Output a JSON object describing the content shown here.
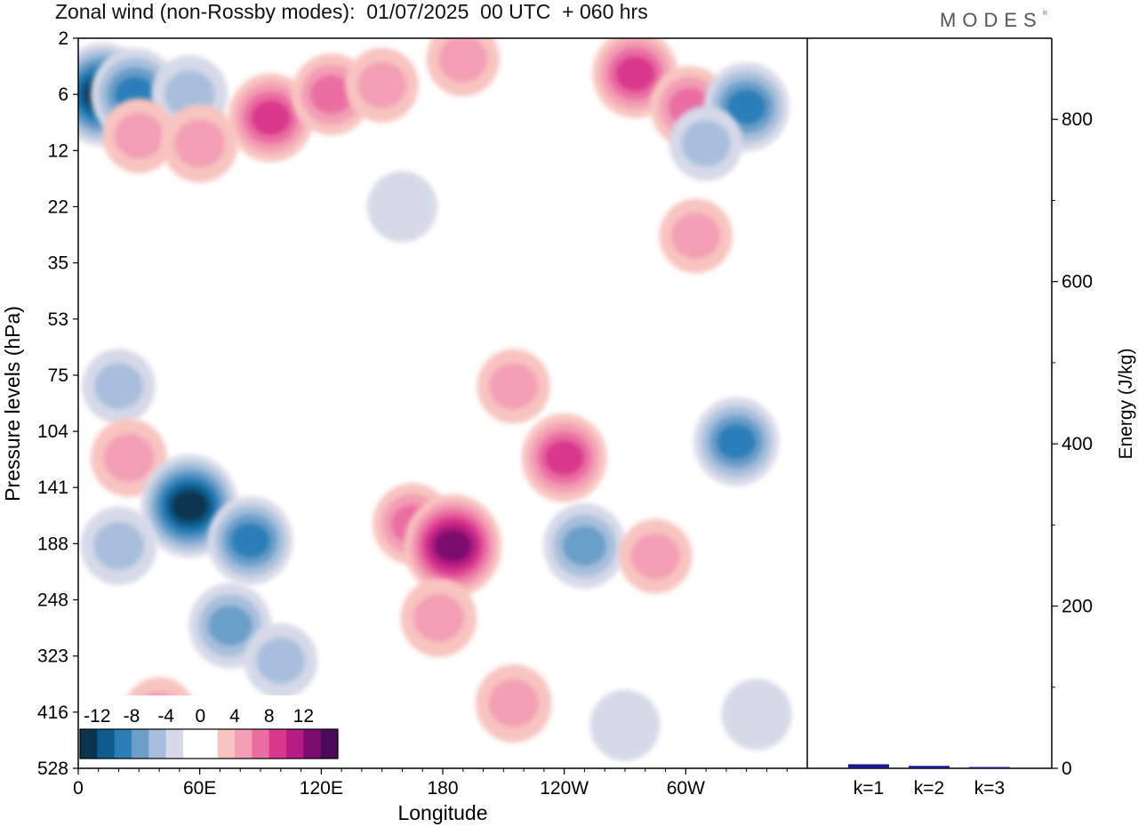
{
  "header": {
    "title": "Zonal wind (non-Rossby modes):  01/07/2025  00 UTC  + 060 hrs",
    "logo": "MODES",
    "logo_mark": "®"
  },
  "chart_data": [
    {
      "type": "heatmap",
      "xlabel": "Longitude",
      "ylabel": "Pressure levels (hPa)",
      "x_ticks": [
        "0",
        "60E",
        "120E",
        "180",
        "120W",
        "60W"
      ],
      "y_ticks": [
        "2",
        "6",
        "12",
        "22",
        "35",
        "53",
        "75",
        "104",
        "141",
        "188",
        "248",
        "323",
        "416",
        "528"
      ],
      "y_scale": "log (pressure levels)",
      "colorbar": {
        "labels": [
          "-12",
          "-8",
          "-4",
          "0",
          "4",
          "8",
          "12"
        ],
        "bins": [
          -14,
          -12,
          -10,
          -8,
          -6,
          -4,
          -2,
          0,
          2,
          4,
          6,
          8,
          10,
          12,
          14
        ],
        "colors": [
          "#0b3450",
          "#0f5d8f",
          "#2a7fb8",
          "#6b9fc9",
          "#a7bfdc",
          "#d6d9e8",
          "#ffffff",
          "#ffffff",
          "#f8c4c0",
          "#f39fb5",
          "#ea6ea2",
          "#d9398c",
          "#b71b84",
          "#7b0d6e",
          "#4a0a57"
        ],
        "placement": "bottom-left"
      },
      "features": [
        {
          "lon": 12,
          "lev": 6,
          "value": -12
        },
        {
          "lon": 28,
          "lev": 6,
          "value": -9
        },
        {
          "lon": 55,
          "lev": 6,
          "value": -5
        },
        {
          "lon": 30,
          "lev": 10,
          "value": 4
        },
        {
          "lon": 60,
          "lev": 11,
          "value": 5
        },
        {
          "lon": 95,
          "lev": 8,
          "value": 8
        },
        {
          "lon": 125,
          "lev": 6,
          "value": 6
        },
        {
          "lon": 150,
          "lev": 5,
          "value": 4
        },
        {
          "lon": 190,
          "lev": 3,
          "value": 4
        },
        {
          "lon": 275,
          "lev": 4,
          "value": 8
        },
        {
          "lon": 302,
          "lev": 7,
          "value": 6
        },
        {
          "lon": 330,
          "lev": 7,
          "value": -8
        },
        {
          "lon": 310,
          "lev": 11,
          "value": -4
        },
        {
          "lon": 160,
          "lev": 22,
          "value": -3
        },
        {
          "lon": 305,
          "lev": 28,
          "value": 4
        },
        {
          "lon": 20,
          "lev": 80,
          "value": -4
        },
        {
          "lon": 25,
          "lev": 120,
          "value": 5
        },
        {
          "lon": 55,
          "lev": 155,
          "value": -12
        },
        {
          "lon": 85,
          "lev": 185,
          "value": -8
        },
        {
          "lon": 20,
          "lev": 190,
          "value": -5
        },
        {
          "lon": 75,
          "lev": 280,
          "value": -7
        },
        {
          "lon": 100,
          "lev": 330,
          "value": -4
        },
        {
          "lon": 165,
          "lev": 170,
          "value": 6
        },
        {
          "lon": 185,
          "lev": 190,
          "value": 12
        },
        {
          "lon": 178,
          "lev": 270,
          "value": 5
        },
        {
          "lon": 240,
          "lev": 120,
          "value": 8
        },
        {
          "lon": 215,
          "lev": 80,
          "value": 4
        },
        {
          "lon": 250,
          "lev": 190,
          "value": -7
        },
        {
          "lon": 285,
          "lev": 200,
          "value": 4
        },
        {
          "lon": 325,
          "lev": 110,
          "value": -8
        },
        {
          "lon": 215,
          "lev": 400,
          "value": 5
        },
        {
          "lon": 40,
          "lev": 420,
          "value": 4
        },
        {
          "lon": 270,
          "lev": 440,
          "value": -3
        },
        {
          "lon": 335,
          "lev": 420,
          "value": -3
        }
      ]
    },
    {
      "type": "bar",
      "ylabel": "Energy (J/kg)",
      "categories": [
        "k=1",
        "k=2",
        "k=3"
      ],
      "values": [
        5,
        3,
        1
      ],
      "ylim": [
        0,
        900
      ],
      "y_ticks": [
        "0",
        "200",
        "400",
        "600",
        "800"
      ],
      "bar_color": "#1a1a8c"
    }
  ]
}
